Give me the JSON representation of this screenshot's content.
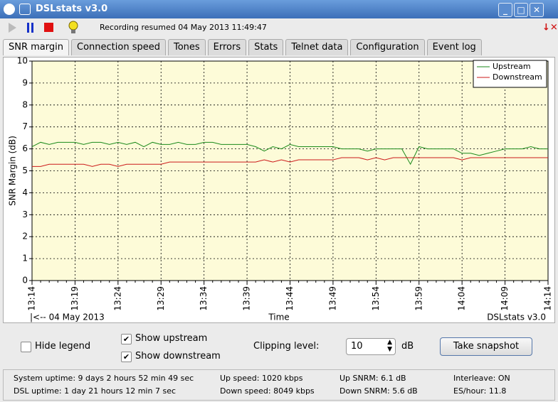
{
  "window": {
    "title": "DSLstats v3.0"
  },
  "toolbar": {
    "status": "Recording resumed 04 May 2013 11:49:47"
  },
  "tabs": [
    "SNR margin",
    "Connection speed",
    "Tones",
    "Errors",
    "Stats",
    "Telnet data",
    "Configuration",
    "Event log"
  ],
  "chart_data": {
    "type": "line",
    "y_label": "SNR Margin (dB)",
    "x_label": "Time",
    "annotation_left": "|<-- 04 May 2013",
    "annotation_right": "DSLstats v3.0",
    "categories": [
      "13:14",
      null,
      null,
      null,
      null,
      "13:19",
      null,
      null,
      null,
      null,
      "13:24",
      null,
      null,
      null,
      null,
      "13:29",
      null,
      null,
      null,
      null,
      "13:34",
      null,
      null,
      null,
      null,
      "13:39",
      null,
      null,
      null,
      null,
      "13:44",
      null,
      null,
      null,
      null,
      "13:49",
      null,
      null,
      null,
      null,
      "13:54",
      null,
      null,
      null,
      null,
      "13:59",
      null,
      null,
      null,
      null,
      "14:04",
      null,
      null,
      null,
      null,
      "14:09",
      null,
      null,
      null,
      null,
      "14:14"
    ],
    "ylim": [
      0,
      10
    ],
    "yticks": [
      0,
      1,
      2,
      3,
      4,
      5,
      6,
      7,
      8,
      9,
      10
    ],
    "grid": true,
    "legend": "upper right",
    "series": [
      {
        "name": "Upstream",
        "color": "#1a8a1a",
        "values": [
          6.1,
          6.3,
          6.2,
          6.3,
          6.3,
          6.3,
          6.2,
          6.3,
          6.3,
          6.2,
          6.3,
          6.2,
          6.3,
          6.1,
          6.3,
          6.2,
          6.2,
          6.3,
          6.2,
          6.2,
          6.3,
          6.3,
          6.2,
          6.2,
          6.2,
          6.2,
          6.1,
          5.9,
          6.1,
          6.0,
          6.2,
          6.1,
          6.1,
          6.1,
          6.1,
          6.1,
          6.0,
          6.0,
          6.0,
          5.9,
          6.0,
          6.0,
          6.0,
          6.0,
          5.3,
          6.1,
          6.0,
          6.0,
          6.0,
          6.0,
          5.8,
          5.8,
          5.7,
          5.8,
          5.9,
          6.0,
          6.0,
          6.0,
          6.1,
          6.0,
          6.0
        ]
      },
      {
        "name": "Downstream",
        "color": "#cc1a1a",
        "values": [
          5.2,
          5.2,
          5.3,
          5.3,
          5.3,
          5.3,
          5.3,
          5.2,
          5.3,
          5.3,
          5.2,
          5.3,
          5.3,
          5.3,
          5.3,
          5.3,
          5.4,
          5.4,
          5.4,
          5.4,
          5.4,
          5.4,
          5.4,
          5.4,
          5.4,
          5.4,
          5.4,
          5.5,
          5.4,
          5.5,
          5.4,
          5.5,
          5.5,
          5.5,
          5.5,
          5.5,
          5.6,
          5.6,
          5.6,
          5.5,
          5.6,
          5.5,
          5.6,
          5.6,
          5.6,
          5.6,
          5.6,
          5.6,
          5.6,
          5.6,
          5.5,
          5.6,
          5.6,
          5.6,
          5.6,
          5.6,
          5.6,
          5.6,
          5.6,
          5.6,
          5.6
        ]
      }
    ]
  },
  "controls": {
    "hide_legend": "Hide legend",
    "show_upstream": "Show upstream",
    "show_downstream": "Show downstream",
    "clipping_label": "Clipping level:",
    "clipping_value": 10,
    "clipping_unit": "dB",
    "snapshot": "Take snapshot"
  },
  "status": {
    "system_uptime": "System uptime: 9 days 2 hours 52 min 49 sec",
    "dsl_uptime": "DSL uptime: 1 day 21 hours 12 min 7 sec",
    "up_speed": "Up speed: 1020 kbps",
    "down_speed": "Down speed: 8049 kbps",
    "up_snrm": "Up SNRM: 6.1 dB",
    "down_snrm": "Down SNRM: 5.6 dB",
    "interleave": "Interleave: ON",
    "es_hour": "ES/hour: 11.8"
  }
}
